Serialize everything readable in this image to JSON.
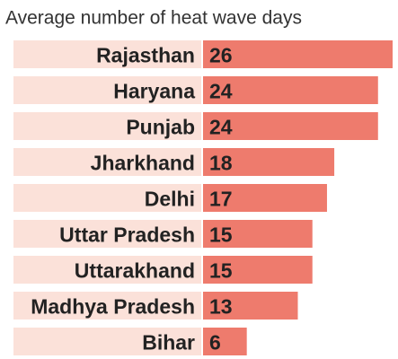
{
  "chart_data": {
    "type": "bar",
    "orientation": "horizontal",
    "title": "Average number of heat wave days",
    "categories": [
      "Rajasthan",
      "Haryana",
      "Punjab",
      "Jharkhand",
      "Delhi",
      "Uttar Pradesh",
      "Uttarakhand",
      "Madhya Pradesh",
      "Bihar"
    ],
    "values": [
      26,
      24,
      24,
      18,
      17,
      15,
      15,
      13,
      6
    ],
    "color": "#ee7b6d",
    "label_background": "#fbe1d9"
  }
}
